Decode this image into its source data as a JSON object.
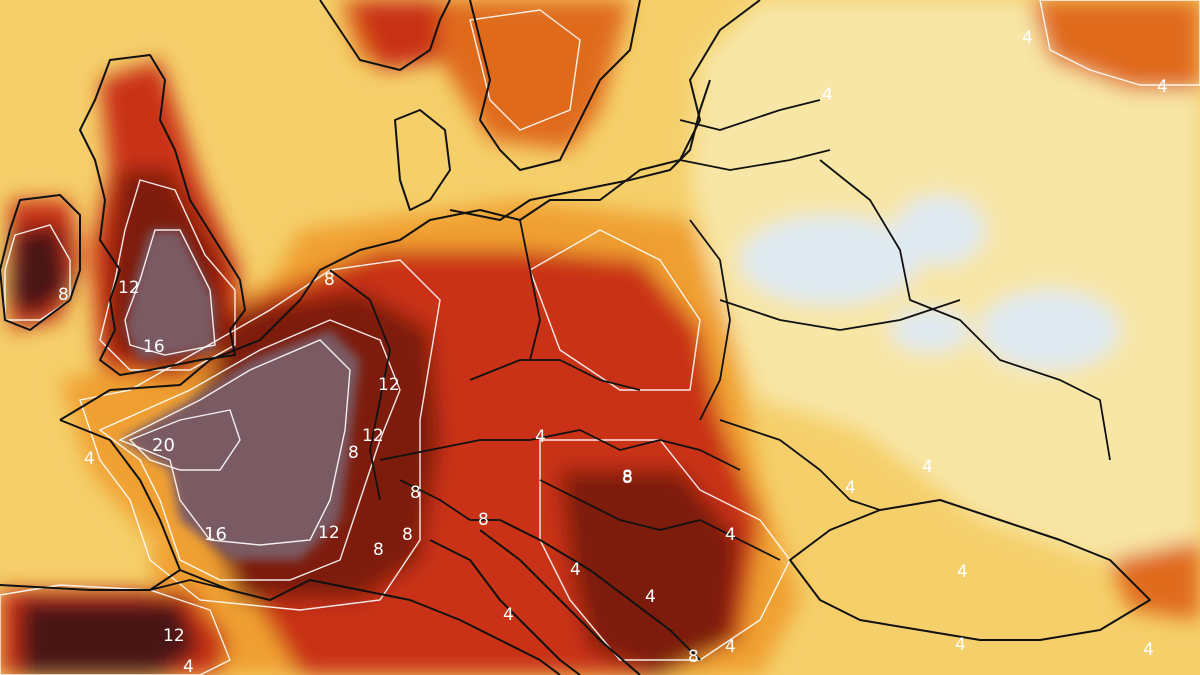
{
  "map": {
    "colors": {
      "pale": "#f8e6a6",
      "yellow": "#f5cf6a",
      "orange": "#f0a030",
      "dark_orange": "#e06a1c",
      "red": "#c93312",
      "dark_red": "#7d1a10",
      "maroon": "#4a1416",
      "grey_purple": "#7a5a63",
      "cold_blue": "#dfeaf2",
      "isoline": "#ffffff",
      "borders": "#111111"
    },
    "contour_labels": [
      {
        "id": "gb-12",
        "text": "12"
      },
      {
        "id": "gb-16",
        "text": "16"
      },
      {
        "id": "ie-8",
        "text": "8"
      },
      {
        "id": "fr-20",
        "text": "20"
      },
      {
        "id": "fr-16",
        "text": "16"
      },
      {
        "id": "fr-12",
        "text": "12"
      },
      {
        "id": "be-12",
        "text": "12"
      },
      {
        "id": "de-12",
        "text": "12"
      },
      {
        "id": "de-8",
        "text": "8"
      },
      {
        "id": "ch-8",
        "text": "8"
      },
      {
        "id": "fr-w-4",
        "text": "4"
      },
      {
        "id": "alps-8a",
        "text": "8"
      },
      {
        "id": "alps-8b",
        "text": "8"
      },
      {
        "id": "alps-8c",
        "text": "8"
      },
      {
        "id": "it-8",
        "text": "8"
      },
      {
        "id": "hu-8",
        "text": "8"
      },
      {
        "id": "at-4",
        "text": "4"
      },
      {
        "id": "ro-4",
        "text": "4"
      },
      {
        "id": "ba-4",
        "text": "4"
      },
      {
        "id": "rs-4",
        "text": "4"
      },
      {
        "id": "it-s-4",
        "text": "4"
      },
      {
        "id": "md-4",
        "text": "4"
      },
      {
        "id": "ua-4",
        "text": "4"
      },
      {
        "id": "bg-8",
        "text": "8"
      },
      {
        "id": "gr-4",
        "text": "4"
      },
      {
        "id": "es-12",
        "text": "12"
      },
      {
        "id": "es-4",
        "text": "4"
      },
      {
        "id": "ru-ne-4",
        "text": "4"
      },
      {
        "id": "ru-ne-4b",
        "text": "4"
      },
      {
        "id": "lt-4",
        "text": "4"
      },
      {
        "id": "ua-s-4",
        "text": "4"
      },
      {
        "id": "tr-4",
        "text": "4"
      },
      {
        "id": "crimea-4",
        "text": "4"
      },
      {
        "id": "caucasus-8",
        "text": "8"
      }
    ]
  }
}
